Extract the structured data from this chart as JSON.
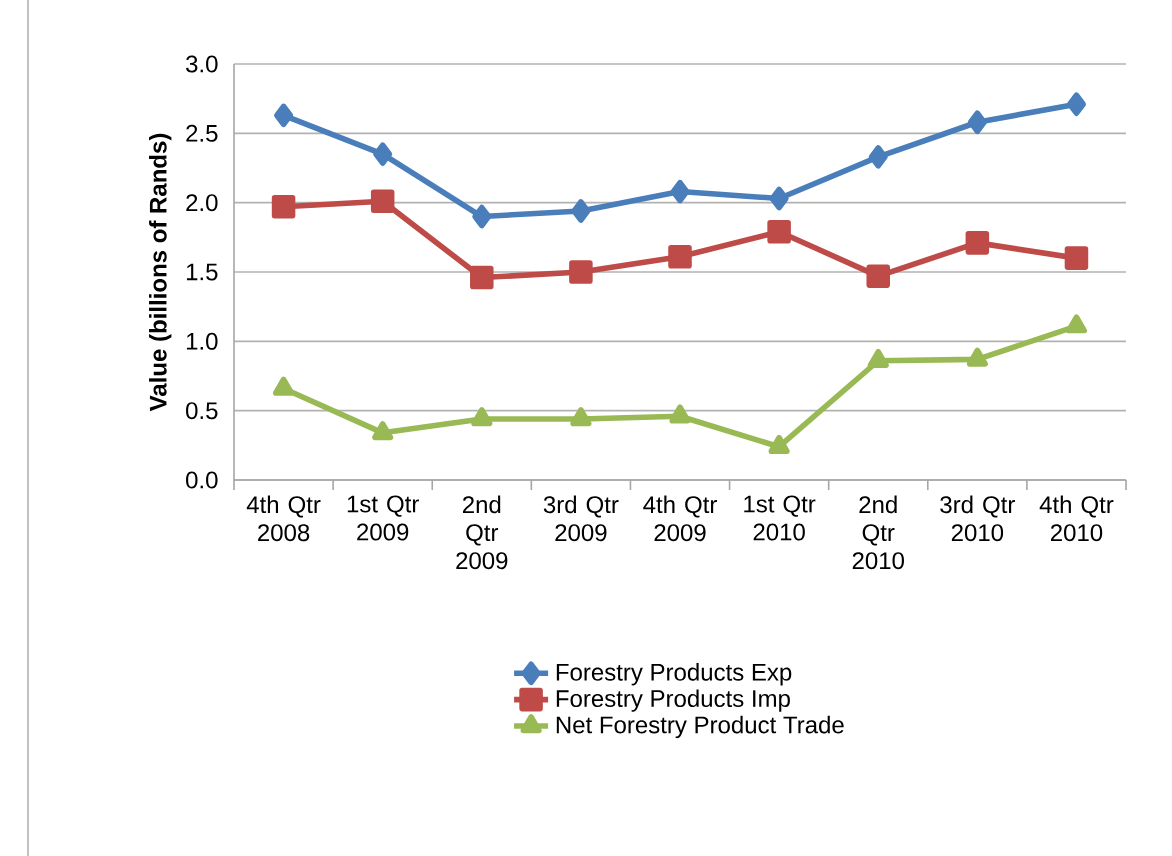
{
  "chart_data": {
    "type": "line",
    "ylabel": "Value (billions of Rands)",
    "categories": [
      "4th Qtr 2008",
      "1st Qtr 2009",
      "2nd Qtr 2009",
      "3rd Qtr 2009",
      "4th Qtr 2009",
      "1st Qtr 2010",
      "2nd Qtr 2010",
      "3rd Qtr 2010",
      "4th Qtr 2010"
    ],
    "series": [
      {
        "name": "Forestry Products Exp",
        "color": "#4a7ebb",
        "marker": "diamond",
        "values": [
          2.63,
          2.35,
          1.9,
          1.94,
          2.08,
          2.03,
          2.33,
          2.58,
          2.71
        ]
      },
      {
        "name": "Forestry Products Imp",
        "color": "#be4b48",
        "marker": "square",
        "values": [
          1.97,
          2.01,
          1.46,
          1.5,
          1.61,
          1.79,
          1.47,
          1.71,
          1.6
        ]
      },
      {
        "name": "Net Forestry Product Trade",
        "color": "#98b954",
        "marker": "triangle",
        "values": [
          0.66,
          0.34,
          0.44,
          0.44,
          0.46,
          0.24,
          0.86,
          0.87,
          1.11
        ]
      }
    ],
    "ylim": [
      0,
      3
    ],
    "yticks": [
      {
        "value": 0,
        "label": "0.0"
      },
      {
        "value": 0.5,
        "label": "0.5"
      },
      {
        "value": 1,
        "label": "1.0"
      },
      {
        "value": 1.5,
        "label": "1.5"
      },
      {
        "value": 2,
        "label": "2.0"
      },
      {
        "value": 2.5,
        "label": "2.5"
      },
      {
        "value": 3,
        "label": "3.0"
      }
    ],
    "grid": "y",
    "legend": "bottom"
  }
}
